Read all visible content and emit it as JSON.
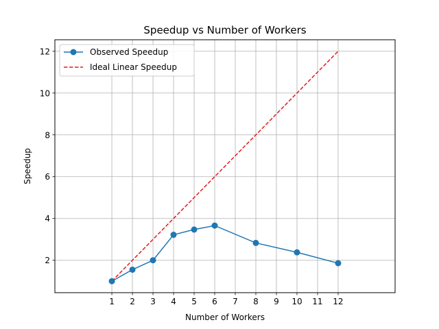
{
  "chart_data": {
    "type": "line",
    "title": "Speedup vs Number of Workers",
    "xlabel": "Number of Workers",
    "ylabel": "Speedup",
    "xlim": [
      -1.77,
      14.77
    ],
    "ylim": [
      0.45,
      12.55
    ],
    "xticks": [
      1,
      2,
      3,
      4,
      5,
      6,
      7,
      8,
      9,
      10,
      11,
      12
    ],
    "yticks": [
      2,
      4,
      6,
      8,
      10,
      12
    ],
    "grid": true,
    "legend_position": "top-left",
    "series": [
      {
        "name": "Observed Speedup",
        "color": "#1f77b4",
        "style": "solid",
        "marker": "circle",
        "x": [
          1,
          2,
          3,
          4,
          5,
          6,
          8,
          10,
          12
        ],
        "y": [
          1.0,
          1.55,
          2.0,
          3.22,
          3.47,
          3.66,
          2.83,
          2.38,
          1.86
        ]
      },
      {
        "name": "Ideal Linear Speedup",
        "color": "#e41a1c",
        "style": "dashed",
        "marker": "none",
        "x": [
          1,
          2,
          3,
          4,
          5,
          6,
          7,
          8,
          9,
          10,
          11,
          12
        ],
        "y": [
          1,
          2,
          3,
          4,
          5,
          6,
          7,
          8,
          9,
          10,
          11,
          12
        ]
      }
    ]
  }
}
